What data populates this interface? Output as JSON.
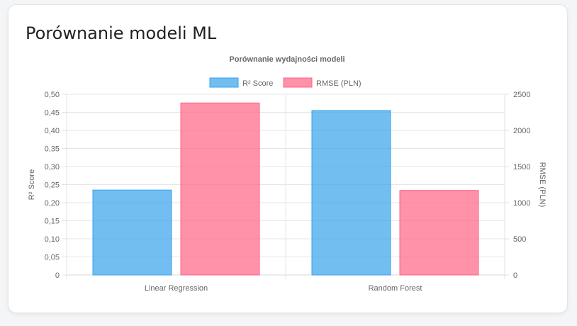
{
  "card": {
    "title": "Porównanie modeli ML"
  },
  "chart_data": {
    "type": "bar",
    "title": "Porównanie wydajności modeli",
    "categories": [
      "Linear Regression",
      "Random Forest"
    ],
    "series": [
      {
        "name": "R² Score",
        "values": [
          0.235,
          0.455
        ],
        "axis": "left",
        "color": "#36a2eb"
      },
      {
        "name": "RMSE (PLN)",
        "values": [
          2380,
          1170
        ],
        "axis": "right",
        "color": "#ff6384"
      }
    ],
    "y_left": {
      "label": "R² Score",
      "ylim": [
        0,
        0.5
      ],
      "ticks": [
        "0",
        "0,05",
        "0,10",
        "0,15",
        "0,20",
        "0,25",
        "0,30",
        "0,35",
        "0,40",
        "0,45",
        "0,50"
      ]
    },
    "y_right": {
      "label": "RMSE (PLN)",
      "ylim": [
        0,
        2500
      ],
      "ticks": [
        "0",
        "500",
        "1000",
        "1500",
        "2000",
        "2500"
      ]
    },
    "legend": "top-center",
    "grid": true
  }
}
